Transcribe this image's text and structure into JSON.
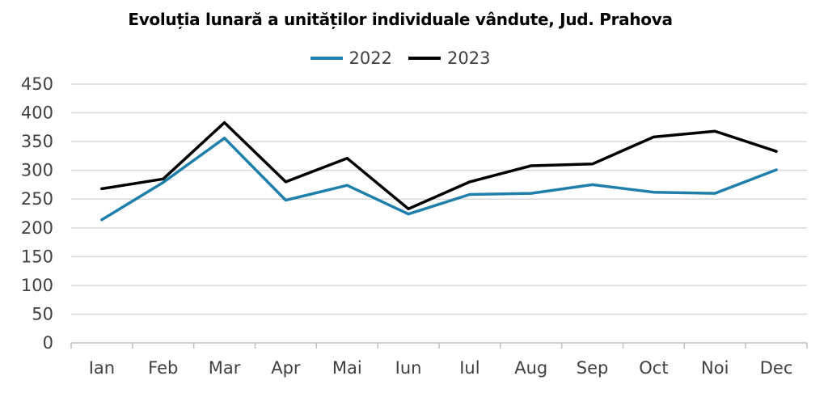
{
  "chart_data": {
    "type": "line",
    "title": "Evoluția lunară a unităților individuale vândute, Jud. Prahova",
    "xlabel": "",
    "ylabel": "",
    "categories": [
      "Ian",
      "Feb",
      "Mar",
      "Apr",
      "Mai",
      "Iun",
      "Iul",
      "Aug",
      "Sep",
      "Oct",
      "Noi",
      "Dec"
    ],
    "series": [
      {
        "name": "2022",
        "color": "#1f7fab",
        "values": [
          214,
          279,
          356,
          248,
          274,
          224,
          258,
          260,
          275,
          262,
          260,
          301
        ]
      },
      {
        "name": "2023",
        "color": "#000000",
        "values": [
          268,
          285,
          383,
          280,
          321,
          233,
          280,
          308,
          311,
          358,
          368,
          333
        ]
      }
    ],
    "ylim": [
      0,
      450
    ],
    "yticks": [
      0,
      50,
      100,
      150,
      200,
      250,
      300,
      350,
      400,
      450
    ],
    "grid": true,
    "legend_position": "top-center"
  }
}
